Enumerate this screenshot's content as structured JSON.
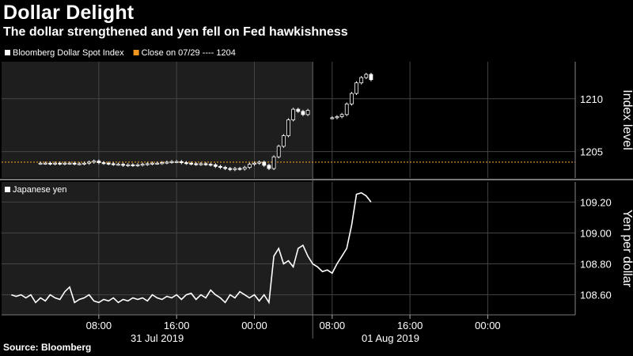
{
  "title": "Dollar Delight",
  "subtitle": "The dollar strengthened and yen fell on Fed hawkishness",
  "source": "Source: Bloomberg",
  "colors": {
    "background": "#000000",
    "shade": "#1e1e1e",
    "grid": "#444444",
    "series": "#ffffff",
    "reference": "#f0961e"
  },
  "chart_data": [
    {
      "type": "candlestick",
      "panel": "top",
      "legend": [
        {
          "label": "Bloomberg Dollar Spot Index",
          "color": "#ffffff"
        },
        {
          "label": "Close on 07/29 ---- 1204",
          "color": "#f0961e"
        }
      ],
      "ylabel": "Index level",
      "ylim": [
        1202.5,
        1213.5
      ],
      "yticks": [
        1205,
        1210
      ],
      "reference_line": {
        "label": "Close on 07/29",
        "value": 1204
      },
      "series_points_note": "x in hours since 00:00 31 Jul 2019 (GMT-like axis), y = index close",
      "x": [
        2.0,
        2.5,
        3.0,
        3.5,
        4.0,
        4.5,
        5.0,
        5.5,
        6.0,
        6.5,
        7.0,
        7.5,
        8.0,
        8.5,
        9.0,
        9.5,
        10.0,
        10.5,
        11.0,
        11.5,
        12.0,
        12.5,
        13.0,
        13.5,
        14.0,
        14.5,
        15.0,
        15.5,
        16.0,
        16.5,
        17.0,
        17.5,
        18.0,
        18.5,
        19.0,
        19.5,
        20.0,
        20.5,
        21.0,
        21.5,
        22.0,
        22.5,
        23.0,
        23.5,
        24.0,
        24.5,
        25.0,
        25.5,
        26.0,
        26.5,
        27.0,
        27.5,
        28.0,
        28.5,
        29.0,
        29.5,
        30.0,
        30.5,
        31.0,
        31.5,
        32.0,
        32.5,
        33.0,
        33.5,
        34.0,
        34.5
      ],
      "values": [
        1203.9,
        1203.9,
        1203.85,
        1203.9,
        1203.85,
        1203.9,
        1203.9,
        1203.85,
        1203.85,
        1203.9,
        1204.0,
        1204.1,
        1203.95,
        1203.9,
        1203.85,
        1203.8,
        1203.8,
        1203.7,
        1203.75,
        1203.7,
        1203.75,
        1203.8,
        1203.85,
        1203.9,
        1203.9,
        1203.95,
        1204.0,
        1204.05,
        1204.05,
        1203.95,
        1203.9,
        1203.85,
        1203.8,
        1203.85,
        1203.8,
        1203.75,
        1203.6,
        1203.5,
        1203.4,
        1203.3,
        1203.4,
        1203.35,
        1203.5,
        1203.8,
        1203.9,
        1204.0,
        1203.7,
        1203.4,
        1204.5,
        1205.5,
        1206.5,
        1208.0,
        1209.0,
        1208.8,
        1208.5,
        1208.9,
        null,
        null,
        null,
        null,
        1208.2,
        1208.3,
        1208.5,
        1209.5,
        1210.5,
        1211.5
      ],
      "extra_values": [
        1212.0,
        1212.3,
        1211.8
      ],
      "extra_x": [
        35.0,
        35.5,
        36.0
      ]
    },
    {
      "type": "line",
      "panel": "bottom",
      "legend": [
        {
          "label": "Japanese yen",
          "color": "#ffffff"
        }
      ],
      "ylabel": "Yen per dollar",
      "ylim": [
        108.47,
        109.33
      ],
      "yticks": [
        108.6,
        108.8,
        109.0,
        109.2
      ],
      "ytick_labels": [
        "108.60",
        "108.80",
        "109.00",
        "109.20"
      ],
      "x": [
        -1.0,
        -0.5,
        0,
        0.5,
        1.0,
        1.5,
        2.0,
        2.5,
        3.0,
        3.5,
        4.0,
        4.5,
        5.0,
        5.5,
        6.0,
        6.5,
        7.0,
        7.5,
        8.0,
        8.5,
        9.0,
        9.5,
        10.0,
        10.5,
        11.0,
        11.5,
        12.0,
        12.5,
        13.0,
        13.5,
        14.0,
        14.5,
        15.0,
        15.5,
        16.0,
        16.5,
        17.0,
        17.5,
        18.0,
        18.5,
        19.0,
        19.5,
        20.0,
        20.5,
        21.0,
        21.5,
        22.0,
        22.5,
        23.0,
        23.5,
        24.0,
        24.5,
        25.0,
        25.5,
        26.0,
        26.5,
        27.0,
        27.5,
        28.0,
        28.5,
        29.0,
        29.5,
        30.0,
        30.5,
        31.0,
        31.5,
        32.0,
        32.5,
        33.0,
        33.5,
        34.0,
        34.5,
        35.0,
        35.5,
        36.0
      ],
      "values": [
        108.6,
        108.59,
        108.6,
        108.58,
        108.6,
        108.55,
        108.58,
        108.56,
        108.6,
        108.58,
        108.57,
        108.62,
        108.65,
        108.55,
        108.57,
        108.58,
        108.6,
        108.56,
        108.55,
        108.57,
        108.56,
        108.58,
        108.55,
        108.57,
        108.56,
        108.58,
        108.57,
        108.58,
        108.56,
        108.6,
        108.58,
        108.57,
        108.59,
        108.58,
        108.6,
        108.57,
        108.6,
        108.61,
        108.57,
        108.6,
        108.58,
        108.63,
        108.6,
        108.58,
        108.55,
        108.6,
        108.58,
        108.62,
        108.6,
        108.58,
        108.6,
        108.56,
        108.6,
        108.55,
        108.85,
        108.9,
        108.8,
        108.82,
        108.78,
        108.9,
        108.92,
        108.85,
        108.8,
        108.78,
        108.75,
        108.76,
        108.74,
        108.8,
        108.85,
        108.9,
        109.05,
        109.25,
        109.26,
        109.24,
        109.2
      ]
    }
  ],
  "x_axis": {
    "ticks": [
      {
        "hour": 8,
        "label": "08:00"
      },
      {
        "hour": 16,
        "label": "16:00"
      },
      {
        "hour": 24,
        "label": "00:00"
      },
      {
        "hour": 32,
        "label": "08:00"
      },
      {
        "hour": 40,
        "label": "16:00"
      },
      {
        "hour": 48,
        "label": "00:00"
      }
    ],
    "dates": [
      {
        "hour": 14,
        "label": "31 Jul 2019"
      },
      {
        "hour": 38,
        "label": "01 Aug 2019"
      }
    ],
    "range": [
      -2,
      57
    ],
    "shaded_until_hour": 30
  }
}
